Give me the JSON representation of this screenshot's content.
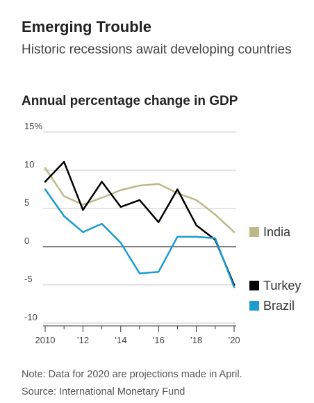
{
  "header": {
    "title": "Emerging Trouble",
    "subtitle": "Historic recessions await developing countries",
    "chart_heading": "Annual percentage change in GDP"
  },
  "footer": {
    "note": "Note: Data for 2020 are projections made in April.",
    "source": "Source: International Monetary Fund"
  },
  "chart_data": {
    "type": "line",
    "title": "Annual percentage change in GDP",
    "x": [
      2010,
      2011,
      2012,
      2013,
      2014,
      2015,
      2016,
      2017,
      2018,
      2019,
      2020
    ],
    "x_tick_labels": [
      "2010",
      "’12",
      "’14",
      "’16",
      "’18",
      "’20"
    ],
    "x_tick_values": [
      2010,
      2012,
      2014,
      2016,
      2018,
      2020
    ],
    "y_tick_labels": [
      "15%",
      "10",
      "5",
      "0",
      "-5",
      "-10"
    ],
    "y_tick_values": [
      15,
      10,
      5,
      0,
      -5,
      -10
    ],
    "ylim": [
      -10,
      15
    ],
    "xlim": [
      2010,
      2020
    ],
    "legend_position": "right",
    "series": [
      {
        "name": "India",
        "color": "#bdb88a",
        "values": [
          10.3,
          6.6,
          5.5,
          6.4,
          7.4,
          8.0,
          8.2,
          7.0,
          6.1,
          4.2,
          1.9
        ]
      },
      {
        "name": "Turkey",
        "color": "#000000",
        "values": [
          8.5,
          11.1,
          4.8,
          8.5,
          5.2,
          6.1,
          3.2,
          7.5,
          2.8,
          0.9,
          -5.0
        ]
      },
      {
        "name": "Brazil",
        "color": "#1a9bd1",
        "values": [
          7.5,
          4.0,
          1.9,
          3.0,
          0.5,
          -3.5,
          -3.3,
          1.3,
          1.3,
          1.1,
          -5.3
        ]
      }
    ]
  }
}
